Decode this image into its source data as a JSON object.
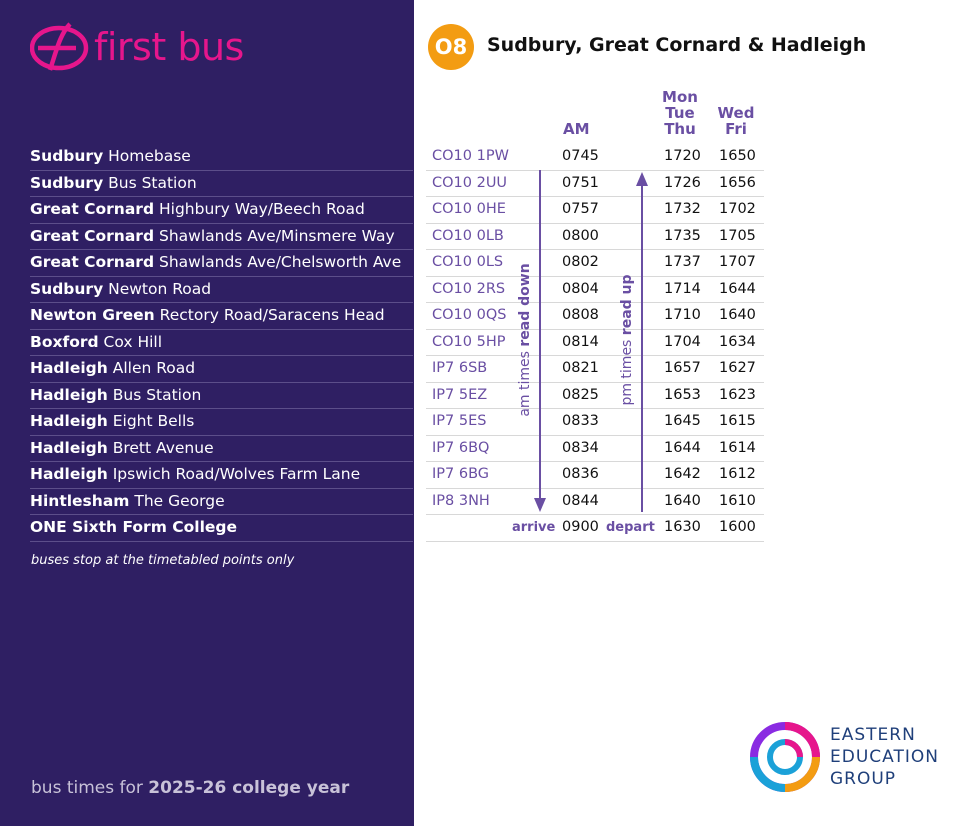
{
  "brand": {
    "name": "first bus",
    "color": "#e6168c"
  },
  "route": {
    "number": "O8",
    "title": "Sudbury, Great Cornard & Hadleigh"
  },
  "headers": {
    "am": "AM",
    "pm1": "Mon Tue Thu",
    "pm1_lines": [
      "Mon",
      "Tue",
      "Thu"
    ],
    "pm2": "Wed Fri",
    "pm2_lines": [
      "Wed",
      "Fri"
    ]
  },
  "stops": [
    {
      "town": "Sudbury",
      "place": "Homebase",
      "postcode": "CO10 1PW",
      "am": "0745",
      "pm1": "1720",
      "pm2": "1650"
    },
    {
      "town": "Sudbury",
      "place": "Bus Station",
      "postcode": "CO10 2UU",
      "am": "0751",
      "pm1": "1726",
      "pm2": "1656"
    },
    {
      "town": "Great Cornard",
      "place": "Highbury Way/Beech Road",
      "postcode": "CO10 0HE",
      "am": "0757",
      "pm1": "1732",
      "pm2": "1702"
    },
    {
      "town": "Great Cornard",
      "place": "Shawlands Ave/Minsmere Way",
      "postcode": "CO10 0LB",
      "am": "0800",
      "pm1": "1735",
      "pm2": "1705"
    },
    {
      "town": "Great Cornard",
      "place": "Shawlands Ave/Chelsworth Ave",
      "postcode": "CO10 0LS",
      "am": "0802",
      "pm1": "1737",
      "pm2": "1707"
    },
    {
      "town": "Sudbury",
      "place": "Newton Road",
      "postcode": "CO10 2RS",
      "am": "0804",
      "pm1": "1714",
      "pm2": "1644"
    },
    {
      "town": "Newton Green",
      "place": "Rectory Road/Saracens Head",
      "postcode": "CO10 0QS",
      "am": "0808",
      "pm1": "1710",
      "pm2": "1640"
    },
    {
      "town": "Boxford",
      "place": "Cox Hill",
      "postcode": "CO10 5HP",
      "am": "0814",
      "pm1": "1704",
      "pm2": "1634"
    },
    {
      "town": "Hadleigh",
      "place": "Allen Road",
      "postcode": "IP7 6SB",
      "am": "0821",
      "pm1": "1657",
      "pm2": "1627"
    },
    {
      "town": "Hadleigh",
      "place": "Bus Station",
      "postcode": "IP7 5EZ",
      "am": "0825",
      "pm1": "1653",
      "pm2": "1623"
    },
    {
      "town": "Hadleigh",
      "place": "Eight Bells",
      "postcode": "IP7 5ES",
      "am": "0833",
      "pm1": "1645",
      "pm2": "1615"
    },
    {
      "town": "Hadleigh",
      "place": "Brett Avenue",
      "postcode": "IP7 6BQ",
      "am": "0834",
      "pm1": "1644",
      "pm2": "1614"
    },
    {
      "town": "Hadleigh",
      "place": "Ipswich Road/Wolves Farm Lane",
      "postcode": "IP7 6BG",
      "am": "0836",
      "pm1": "1642",
      "pm2": "1612"
    },
    {
      "town": "Hintlesham",
      "place": "The George",
      "postcode": "IP8 3NH",
      "am": "0844",
      "pm1": "1640",
      "pm2": "1610"
    }
  ],
  "final_stop": {
    "name": "ONE Sixth Form College",
    "arrive_label": "arrive",
    "depart_label": "depart",
    "am": "0900",
    "pm1": "1630",
    "pm2": "1600"
  },
  "am_direction_prefix": "am times ",
  "am_direction_emph": "read down",
  "pm_direction_prefix": "pm times ",
  "pm_direction_emph": "read up",
  "note": "buses stop at the timetabled points only",
  "footer_prefix": "bus times for ",
  "footer_emph": "2025-26 college year",
  "partner_logo_lines": [
    "EASTERN",
    "EDUCATION",
    "GROUP"
  ],
  "colors": {
    "sidebar": "#2f1f63",
    "accent_purple": "#6a4fa3",
    "badge_orange": "#f39c12"
  }
}
